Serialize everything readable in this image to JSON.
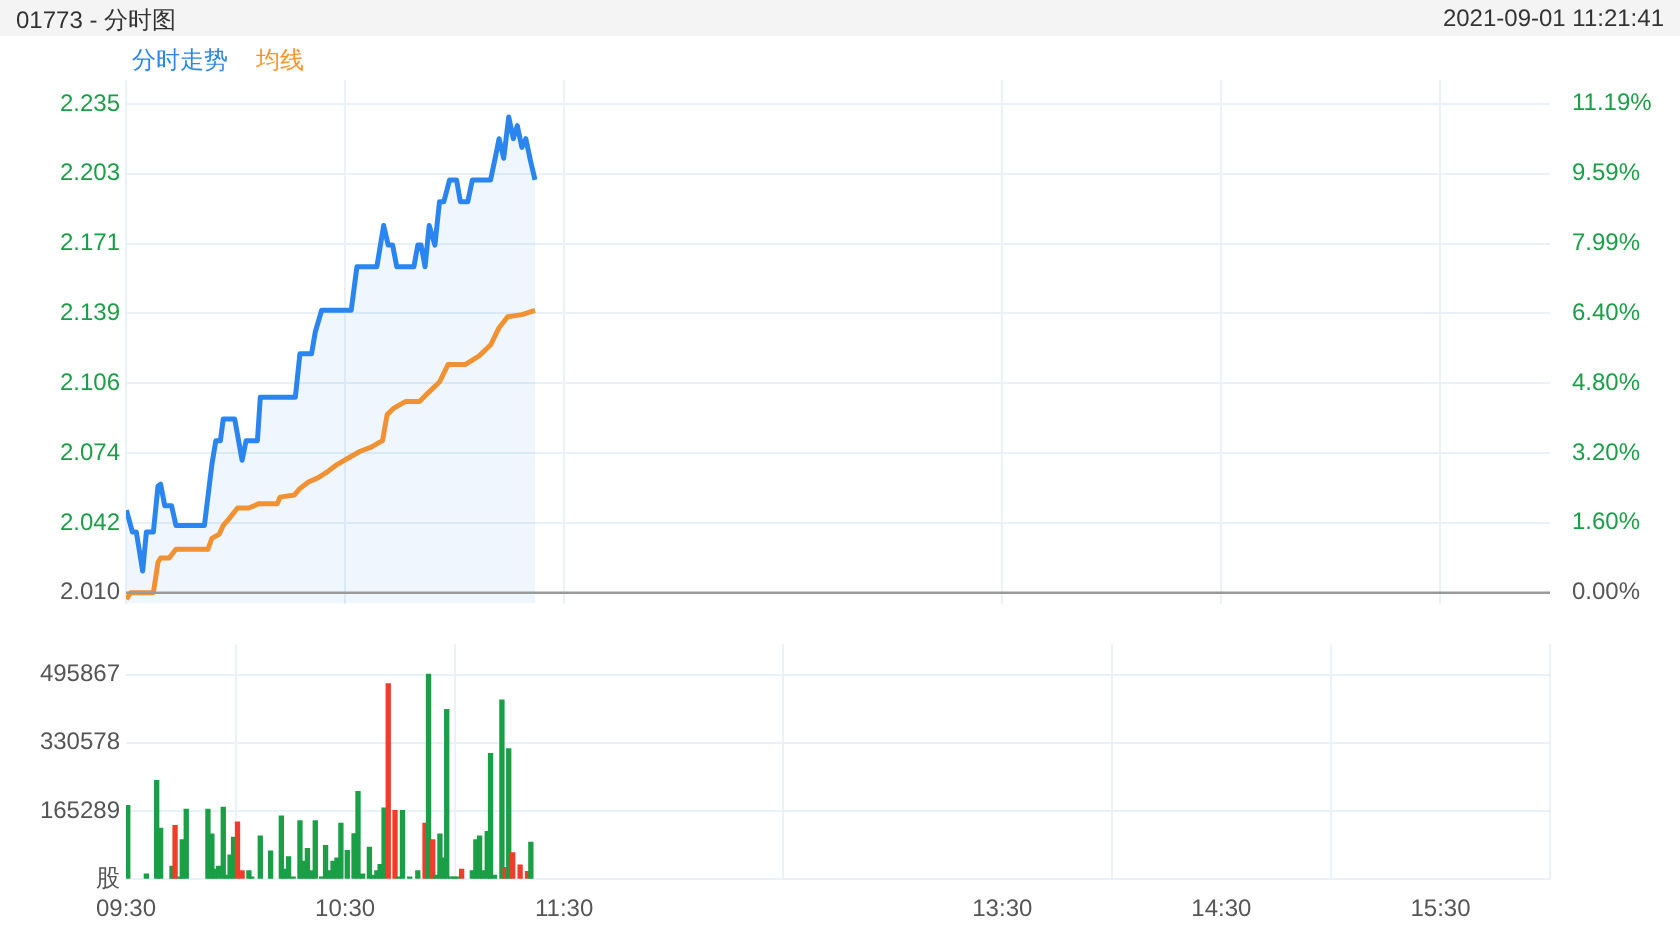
{
  "chart_data": [
    {
      "type": "line",
      "title": "01773 - 分时图",
      "annotations": [
        "2021-09-01 11:21:41"
      ],
      "xlim": [
        9.5,
        16
      ],
      "xticks": [
        {
          "value": 9.5,
          "label": null
        },
        {
          "value": 10.5,
          "label": null
        },
        {
          "value": 11.5,
          "label": null
        },
        {
          "value": 13.5,
          "label": null
        },
        {
          "value": 14.5,
          "label": null
        },
        {
          "value": 15.5,
          "label": null
        }
      ],
      "ylim": [
        2.005,
        2.246
      ],
      "yticks": [
        {
          "value": 2.01,
          "label": "2.010"
        },
        {
          "value": 2.04214,
          "label": "2.042"
        },
        {
          "value": 2.07429,
          "label": "2.074"
        },
        {
          "value": 2.10643,
          "label": "2.106"
        },
        {
          "value": 2.13857,
          "label": "2.139"
        },
        {
          "value": 2.17071,
          "label": "2.171"
        },
        {
          "value": 2.20286,
          "label": "2.203"
        },
        {
          "value": 2.235,
          "label": "2.235"
        }
      ],
      "y2lim": [
        -0.25,
        11.74
      ],
      "y2ticks": [
        {
          "value": 0,
          "label": "0.00%"
        },
        {
          "value": 1.599,
          "label": "1.60%"
        },
        {
          "value": 3.198,
          "label": "3.20%"
        },
        {
          "value": 4.797,
          "label": "4.80%"
        },
        {
          "value": 6.397,
          "label": "6.40%"
        },
        {
          "value": 7.99,
          "label": "7.99%"
        },
        {
          "value": 9.595,
          "label": "9.59%"
        },
        {
          "value": 11.194,
          "label": "11.19%"
        }
      ],
      "grid": true,
      "legend": "top left",
      "tick_labels": "y",
      "ref_lines": [
        {
          "axis": "y",
          "value": 2.01,
          "color": "#9a9a9a"
        }
      ],
      "series": [
        {
          "name": "分时走势",
          "type": "area",
          "color": "#2a85f0",
          "x": [
            9.502,
            9.529,
            9.547,
            9.576,
            9.593,
            9.625,
            9.646,
            9.658,
            9.677,
            9.708,
            9.728,
            9.858,
            9.892,
            9.91,
            9.931,
            9.944,
            9.996,
            10.03,
            10.048,
            10.1,
            10.113,
            10.273,
            10.294,
            10.347,
            10.364,
            10.393,
            10.528,
            10.554,
            10.645,
            10.676,
            10.697,
            10.717,
            10.736,
            10.814,
            10.832,
            10.847,
            10.865,
            10.884,
            10.91,
            10.931,
            10.951,
            10.977,
            11.009,
            11.026,
            11.06,
            11.081,
            11.164,
            11.185,
            11.203,
            11.224,
            11.247,
            11.268,
            11.286,
            11.307,
            11.325,
            11.346,
            11.367
          ],
          "values": [
            2.048,
            2.038,
            2.038,
            2.02,
            2.038,
            2.038,
            2.059,
            2.06,
            2.05,
            2.05,
            2.041,
            2.041,
            2.069,
            2.08,
            2.08,
            2.09,
            2.09,
            2.071,
            2.08,
            2.08,
            2.1,
            2.1,
            2.12,
            2.12,
            2.13,
            2.14,
            2.14,
            2.16,
            2.16,
            2.179,
            2.17,
            2.17,
            2.16,
            2.16,
            2.17,
            2.17,
            2.16,
            2.179,
            2.17,
            2.19,
            2.19,
            2.2,
            2.2,
            2.19,
            2.19,
            2.2,
            2.2,
            2.21,
            2.219,
            2.21,
            2.229,
            2.219,
            2.225,
            2.215,
            2.219,
            2.209,
            2.2
          ]
        },
        {
          "name": "均线",
          "type": "line",
          "color": "#ff9326",
          "x": [
            9.502,
            9.521,
            9.625,
            9.646,
            9.658,
            9.697,
            9.728,
            9.874,
            9.892,
            9.926,
            9.944,
            9.97,
            10.009,
            10.061,
            10.107,
            10.191,
            10.203,
            10.269,
            10.294,
            10.333,
            10.378,
            10.424,
            10.463,
            10.515,
            10.567,
            10.619,
            10.671,
            10.692,
            10.723,
            10.775,
            10.84,
            10.879,
            10.931,
            10.97,
            11.048,
            11.112,
            11.164,
            11.203,
            11.242,
            11.307,
            11.367
          ],
          "values": [
            2.007,
            2.01,
            2.01,
            2.024,
            2.026,
            2.026,
            2.03,
            2.03,
            2.035,
            2.037,
            2.041,
            2.044,
            2.049,
            2.049,
            2.051,
            2.051,
            2.054,
            2.055,
            2.058,
            2.061,
            2.063,
            2.066,
            2.069,
            2.072,
            2.075,
            2.077,
            2.08,
            2.092,
            2.095,
            2.098,
            2.098,
            2.102,
            2.107,
            2.115,
            2.115,
            2.119,
            2.124,
            2.132,
            2.137,
            2.138,
            2.14
          ]
        }
      ]
    },
    {
      "type": "bar",
      "xlim": [
        9.5,
        16
      ],
      "xticks": [
        {
          "value": 9.5,
          "label": "09:30"
        },
        {
          "value": 10.5,
          "label": "10:30"
        },
        {
          "value": 11.5,
          "label": "11:30"
        },
        {
          "value": 13.5,
          "label": "13:30"
        },
        {
          "value": 14.5,
          "label": "14:30"
        },
        {
          "value": 15.5,
          "label": "15:30"
        }
      ],
      "ylim": [
        0,
        569000
      ],
      "yticks": [
        {
          "value": 0,
          "label": "股"
        },
        165289,
        330578,
        495867
      ],
      "grid": true,
      "x": [
        9.508,
        9.593,
        9.64,
        9.658,
        9.71,
        9.724,
        9.744,
        9.757,
        9.775,
        9.874,
        9.892,
        9.905,
        9.923,
        9.944,
        9.957,
        9.975,
        9.991,
        10.009,
        10.03,
        10.061,
        10.074,
        10.113,
        10.16,
        10.209,
        10.224,
        10.242,
        10.263,
        10.294,
        10.308,
        10.328,
        10.347,
        10.364,
        10.393,
        10.411,
        10.429,
        10.445,
        10.463,
        10.481,
        10.51,
        10.541,
        10.559,
        10.58,
        10.611,
        10.627,
        10.645,
        10.66,
        10.678,
        10.697,
        10.728,
        10.744,
        10.762,
        10.795,
        10.832,
        10.865,
        10.881,
        10.9,
        10.915,
        10.933,
        10.949,
        10.964,
        10.982,
        10.998,
        11.013,
        11.032,
        11.081,
        11.097,
        11.114,
        11.13,
        11.149,
        11.164,
        11.182,
        11.216,
        11.231,
        11.247,
        11.265,
        11.299,
        11.333,
        11.348
      ],
      "values": [
        178000,
        12000,
        239000,
        123000,
        31000,
        130000,
        5000,
        95000,
        169000,
        169000,
        109000,
        24000,
        31000,
        174000,
        9000,
        58000,
        101000,
        138000,
        20000,
        20000,
        5000,
        104000,
        68000,
        153000,
        24000,
        54000,
        5000,
        141000,
        43000,
        74000,
        20000,
        141000,
        5000,
        81000,
        20000,
        43000,
        51000,
        135000,
        69000,
        110000,
        212000,
        12000,
        77000,
        9000,
        20000,
        35000,
        172000,
        473000,
        166000,
        5000,
        166000,
        5000,
        20000,
        135000,
        496000,
        95000,
        9000,
        109000,
        51000,
        411000,
        5000,
        5000,
        5000,
        24000,
        20000,
        95000,
        104000,
        20000,
        115000,
        304000,
        9000,
        434000,
        28000,
        316000,
        64000,
        34000,
        18000,
        89000
      ],
      "colors": [
        "#1a9e46",
        "#1a9e46",
        "#1a9e46",
        "#1a9e46",
        "#1a9e46",
        "#f03c28",
        "#1a9e46",
        "#1a9e46",
        "#1a9e46",
        "#1a9e46",
        "#1a9e46",
        "#1a9e46",
        "#1a9e46",
        "#1a9e46",
        "#1a9e46",
        "#1a9e46",
        "#1a9e46",
        "#f03c28",
        "#f03c28",
        "#1a9e46",
        "#1a9e46",
        "#1a9e46",
        "#1a9e46",
        "#1a9e46",
        "#1a9e46",
        "#1a9e46",
        "#1a9e46",
        "#1a9e46",
        "#1a9e46",
        "#1a9e46",
        "#1a9e46",
        "#1a9e46",
        "#1a9e46",
        "#1a9e46",
        "#1a9e46",
        "#1a9e46",
        "#1a9e46",
        "#1a9e46",
        "#1a9e46",
        "#1a9e46",
        "#1a9e46",
        "#1a9e46",
        "#1a9e46",
        "#1a9e46",
        "#1a9e46",
        "#1a9e46",
        "#1a9e46",
        "#f03c28",
        "#f03c28",
        "#1a9e46",
        "#1a9e46",
        "#1a9e46",
        "#1a9e46",
        "#f03c28",
        "#1a9e46",
        "#f03c28",
        "#1a9e46",
        "#1a9e46",
        "#1a9e46",
        "#1a9e46",
        "#1a9e46",
        "#1a9e46",
        "#1a9e46",
        "#f03c28",
        "#1a9e46",
        "#1a9e46",
        "#1a9e46",
        "#1a9e46",
        "#1a9e46",
        "#1a9e46",
        "#1a9e46",
        "#1a9e46",
        "#f03c28",
        "#1a9e46",
        "#f03c28",
        "#f03c28",
        "#f03c28",
        "#1a9e46"
      ]
    }
  ]
}
